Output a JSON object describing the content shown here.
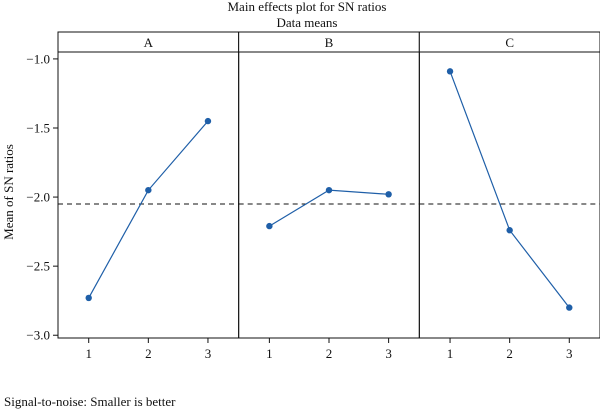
{
  "chart_data": {
    "type": "line",
    "title": "Main effects plot for SN ratios",
    "subtitle": "Data means",
    "ylabel": "Mean of SN ratios",
    "ylim": [
      -3.02,
      -0.95
    ],
    "yticks": [
      -1.0,
      -1.5,
      -2.0,
      -2.5,
      -3.0
    ],
    "ytick_labels": [
      "−1.0",
      "−1.5",
      "−2.0",
      "−2.5",
      "−3.0"
    ],
    "reference_line": -2.05,
    "line_color": "#1f5fa8",
    "panels": [
      {
        "name": "A",
        "x": [
          "1",
          "2",
          "3"
        ],
        "values": [
          -2.73,
          -1.95,
          -1.45
        ]
      },
      {
        "name": "B",
        "x": [
          "1",
          "2",
          "3"
        ],
        "values": [
          -2.21,
          -1.95,
          -1.98
        ]
      },
      {
        "name": "C",
        "x": [
          "1",
          "2",
          "3"
        ],
        "values": [
          -1.09,
          -2.24,
          -2.8
        ]
      }
    ]
  },
  "footnote": "Signal-to-noise: Smaller is better"
}
